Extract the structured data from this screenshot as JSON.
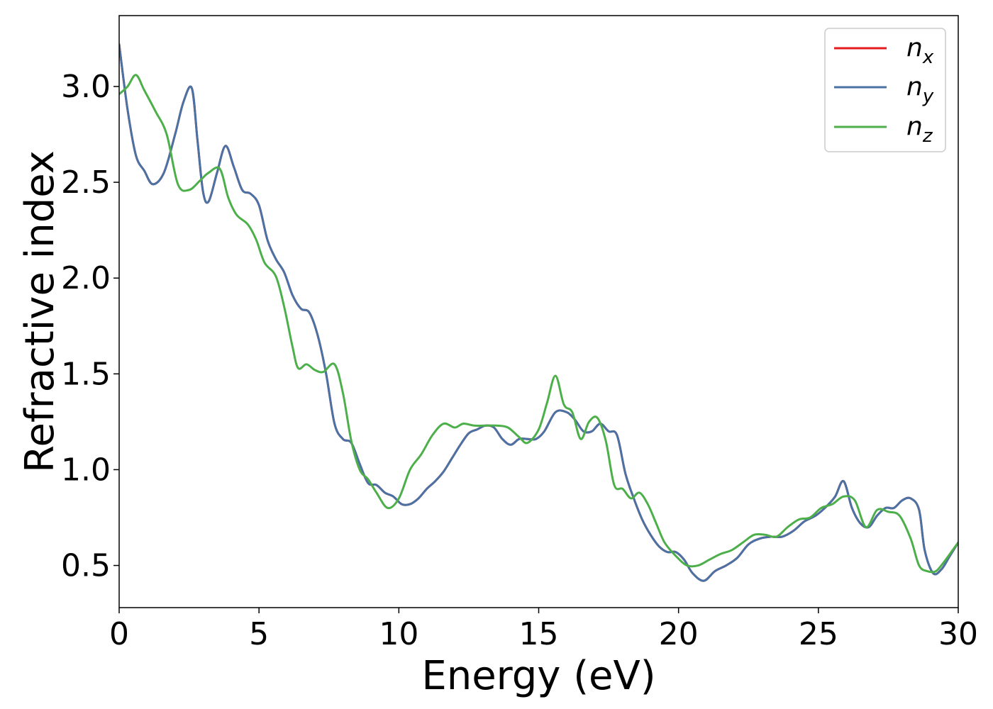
{
  "chart_data": {
    "type": "line",
    "title": "",
    "xlabel": "Energy (eV)",
    "ylabel": "Refractive index",
    "xlim": [
      0,
      30
    ],
    "ylim": [
      0.28,
      3.37
    ],
    "xticks": [
      0,
      5,
      10,
      15,
      20,
      25,
      30
    ],
    "xtick_labels": [
      "0",
      "5",
      "10",
      "15",
      "20",
      "25",
      "30"
    ],
    "yticks": [
      0.5,
      1.0,
      1.5,
      2.0,
      2.5,
      3.0
    ],
    "ytick_labels": [
      "0.5",
      "1.0",
      "1.5",
      "2.0",
      "2.5",
      "3.0"
    ],
    "grid": false,
    "legend_position": "top-right",
    "series": [
      {
        "name": "n_x",
        "label_base": "n",
        "label_sub": "x",
        "color": "#e41a1c",
        "x": [
          0,
          0.3,
          0.6,
          0.9,
          1.2,
          1.6,
          2.0,
          2.3,
          2.6,
          2.8,
          3.0,
          3.2,
          3.5,
          3.8,
          4.1,
          4.4,
          4.7,
          5.0,
          5.3,
          5.6,
          5.9,
          6.2,
          6.5,
          6.8,
          7.1,
          7.4,
          7.7,
          8.0,
          8.3,
          8.6,
          8.9,
          9.2,
          9.5,
          9.8,
          10.1,
          10.4,
          10.7,
          11.0,
          11.3,
          11.6,
          11.9,
          12.2,
          12.5,
          12.8,
          13.1,
          13.4,
          13.7,
          14.0,
          14.3,
          14.6,
          14.9,
          15.2,
          15.6,
          16.0,
          16.3,
          16.6,
          16.9,
          17.2,
          17.5,
          17.8,
          18.1,
          18.4,
          18.7,
          19.0,
          19.3,
          19.6,
          19.9,
          20.2,
          20.5,
          20.9,
          21.3,
          21.7,
          22.1,
          22.5,
          22.9,
          23.3,
          23.7,
          24.1,
          24.5,
          24.9,
          25.3,
          25.6,
          25.9,
          26.2,
          26.5,
          26.8,
          27.1,
          27.4,
          27.7,
          28.0,
          28.3,
          28.6,
          28.8,
          29.1,
          29.4,
          29.7,
          30.0
        ],
        "y": [
          3.22,
          2.88,
          2.64,
          2.56,
          2.49,
          2.55,
          2.75,
          2.92,
          2.99,
          2.72,
          2.45,
          2.4,
          2.55,
          2.69,
          2.58,
          2.46,
          2.44,
          2.38,
          2.2,
          2.1,
          2.03,
          1.91,
          1.84,
          1.82,
          1.7,
          1.5,
          1.24,
          1.16,
          1.14,
          1.03,
          0.93,
          0.92,
          0.88,
          0.86,
          0.82,
          0.82,
          0.85,
          0.9,
          0.94,
          0.99,
          1.06,
          1.13,
          1.19,
          1.21,
          1.23,
          1.22,
          1.16,
          1.13,
          1.16,
          1.16,
          1.16,
          1.2,
          1.3,
          1.3,
          1.26,
          1.2,
          1.2,
          1.24,
          1.2,
          1.18,
          0.98,
          0.85,
          0.74,
          0.66,
          0.6,
          0.57,
          0.57,
          0.53,
          0.46,
          0.42,
          0.47,
          0.5,
          0.54,
          0.61,
          0.64,
          0.65,
          0.65,
          0.68,
          0.73,
          0.76,
          0.81,
          0.86,
          0.94,
          0.8,
          0.72,
          0.7,
          0.76,
          0.8,
          0.8,
          0.84,
          0.85,
          0.79,
          0.58,
          0.46,
          0.48,
          0.55,
          0.62
        ]
      },
      {
        "name": "n_y",
        "label_base": "n",
        "label_sub": "y",
        "color": "#4a72a4",
        "x": [
          0,
          0.3,
          0.6,
          0.9,
          1.2,
          1.6,
          2.0,
          2.3,
          2.6,
          2.8,
          3.0,
          3.2,
          3.5,
          3.8,
          4.1,
          4.4,
          4.7,
          5.0,
          5.3,
          5.6,
          5.9,
          6.2,
          6.5,
          6.8,
          7.1,
          7.4,
          7.7,
          8.0,
          8.3,
          8.6,
          8.9,
          9.2,
          9.5,
          9.8,
          10.1,
          10.4,
          10.7,
          11.0,
          11.3,
          11.6,
          11.9,
          12.2,
          12.5,
          12.8,
          13.1,
          13.4,
          13.7,
          14.0,
          14.3,
          14.6,
          14.9,
          15.2,
          15.6,
          16.0,
          16.3,
          16.6,
          16.9,
          17.2,
          17.5,
          17.8,
          18.1,
          18.4,
          18.7,
          19.0,
          19.3,
          19.6,
          19.9,
          20.2,
          20.5,
          20.9,
          21.3,
          21.7,
          22.1,
          22.5,
          22.9,
          23.3,
          23.7,
          24.1,
          24.5,
          24.9,
          25.3,
          25.6,
          25.9,
          26.2,
          26.5,
          26.8,
          27.1,
          27.4,
          27.7,
          28.0,
          28.3,
          28.6,
          28.8,
          29.1,
          29.4,
          29.7,
          30.0
        ],
        "y": [
          3.22,
          2.88,
          2.64,
          2.56,
          2.49,
          2.55,
          2.75,
          2.92,
          2.99,
          2.72,
          2.45,
          2.4,
          2.55,
          2.69,
          2.58,
          2.46,
          2.44,
          2.38,
          2.2,
          2.1,
          2.03,
          1.91,
          1.84,
          1.82,
          1.7,
          1.5,
          1.24,
          1.16,
          1.14,
          1.03,
          0.93,
          0.92,
          0.88,
          0.86,
          0.82,
          0.82,
          0.85,
          0.9,
          0.94,
          0.99,
          1.06,
          1.13,
          1.19,
          1.21,
          1.23,
          1.22,
          1.16,
          1.13,
          1.16,
          1.16,
          1.16,
          1.2,
          1.3,
          1.3,
          1.26,
          1.2,
          1.2,
          1.24,
          1.2,
          1.18,
          0.98,
          0.85,
          0.74,
          0.66,
          0.6,
          0.57,
          0.57,
          0.53,
          0.46,
          0.42,
          0.47,
          0.5,
          0.54,
          0.61,
          0.64,
          0.65,
          0.65,
          0.68,
          0.73,
          0.76,
          0.81,
          0.86,
          0.94,
          0.8,
          0.72,
          0.7,
          0.76,
          0.8,
          0.8,
          0.84,
          0.85,
          0.79,
          0.58,
          0.46,
          0.48,
          0.55,
          0.62
        ]
      },
      {
        "name": "n_z",
        "label_base": "n",
        "label_sub": "z",
        "color": "#4daf4a",
        "x": [
          0,
          0.3,
          0.6,
          0.9,
          1.3,
          1.7,
          2.1,
          2.5,
          2.9,
          3.2,
          3.6,
          3.9,
          4.2,
          4.6,
          4.9,
          5.2,
          5.6,
          5.9,
          6.2,
          6.4,
          6.7,
          7.0,
          7.3,
          7.7,
          8.0,
          8.3,
          8.6,
          8.9,
          9.2,
          9.6,
          10.0,
          10.4,
          10.8,
          11.2,
          11.6,
          12.0,
          12.3,
          12.7,
          13.1,
          13.5,
          13.9,
          14.3,
          14.6,
          15.0,
          15.3,
          15.6,
          15.9,
          16.2,
          16.5,
          16.8,
          17.1,
          17.4,
          17.7,
          18.0,
          18.3,
          18.6,
          18.9,
          19.2,
          19.5,
          19.9,
          20.3,
          20.7,
          21.1,
          21.5,
          21.9,
          22.3,
          22.7,
          23.1,
          23.5,
          23.9,
          24.3,
          24.7,
          25.1,
          25.5,
          25.9,
          26.3,
          26.7,
          27.1,
          27.5,
          27.9,
          28.3,
          28.6,
          28.9,
          29.2,
          29.5,
          29.8,
          30.0
        ],
        "y": [
          2.96,
          3.0,
          3.06,
          2.98,
          2.87,
          2.75,
          2.49,
          2.46,
          2.51,
          2.55,
          2.57,
          2.42,
          2.33,
          2.28,
          2.2,
          2.08,
          2.01,
          1.85,
          1.64,
          1.53,
          1.55,
          1.52,
          1.51,
          1.55,
          1.4,
          1.15,
          1.0,
          0.95,
          0.88,
          0.8,
          0.85,
          1.0,
          1.08,
          1.18,
          1.24,
          1.22,
          1.24,
          1.23,
          1.23,
          1.23,
          1.22,
          1.17,
          1.14,
          1.21,
          1.35,
          1.49,
          1.34,
          1.3,
          1.16,
          1.25,
          1.27,
          1.15,
          0.92,
          0.9,
          0.85,
          0.88,
          0.82,
          0.72,
          0.62,
          0.55,
          0.5,
          0.5,
          0.53,
          0.56,
          0.58,
          0.62,
          0.66,
          0.66,
          0.65,
          0.7,
          0.74,
          0.75,
          0.8,
          0.82,
          0.86,
          0.84,
          0.7,
          0.79,
          0.78,
          0.76,
          0.64,
          0.5,
          0.47,
          0.47,
          0.52,
          0.58,
          0.62
        ]
      }
    ]
  }
}
